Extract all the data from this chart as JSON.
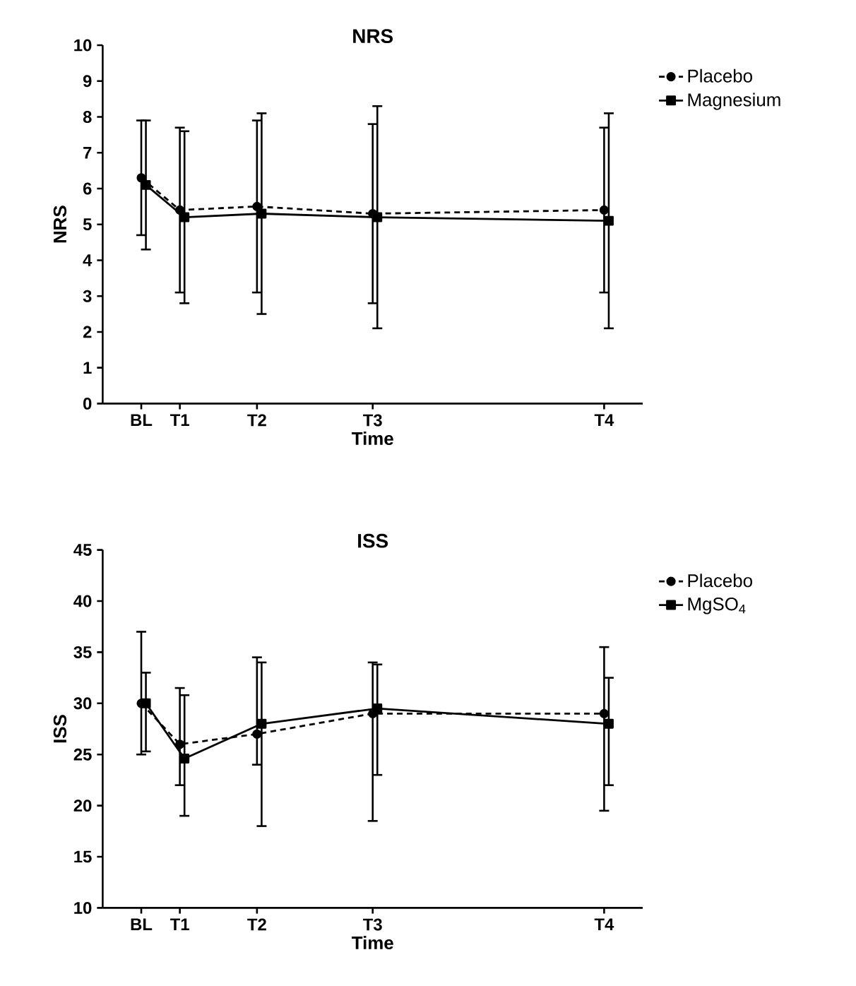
{
  "chart_data": [
    {
      "type": "line",
      "title": "NRS",
      "xlabel": "Time",
      "ylabel": "NRS",
      "categories": [
        "BL",
        "T1",
        null,
        "T2",
        null,
        null,
        "T3",
        null,
        null,
        null,
        null,
        null,
        "T4"
      ],
      "ylim": [
        0,
        10
      ],
      "yticks": [
        0,
        1,
        2,
        3,
        4,
        5,
        6,
        7,
        8,
        9,
        10
      ],
      "legend": "top right",
      "grid": false,
      "series": [
        {
          "name": "Placebo",
          "color": "#000000",
          "line_style": "dashed",
          "marker": "circle",
          "values": [
            6.3,
            5.4,
            null,
            5.5,
            null,
            null,
            5.3,
            null,
            null,
            null,
            null,
            null,
            5.4
          ],
          "errors": [
            [
              4.7,
              7.9
            ],
            [
              3.1,
              7.7
            ],
            null,
            [
              3.1,
              7.9
            ],
            null,
            null,
            [
              2.8,
              7.8
            ],
            null,
            null,
            null,
            null,
            null,
            [
              3.1,
              7.7
            ]
          ]
        },
        {
          "name": "Magnesium",
          "color": "#000000",
          "line_style": "solid",
          "marker": "square",
          "values": [
            6.1,
            5.2,
            null,
            5.3,
            null,
            null,
            5.2,
            null,
            null,
            null,
            null,
            null,
            5.1
          ],
          "errors": [
            [
              4.3,
              7.9
            ],
            [
              2.8,
              7.6
            ],
            null,
            [
              2.5,
              8.1
            ],
            null,
            null,
            [
              2.1,
              8.3
            ],
            null,
            null,
            null,
            null,
            null,
            [
              2.1,
              8.1
            ]
          ]
        }
      ]
    },
    {
      "type": "line",
      "title": "ISS",
      "xlabel": "Time",
      "ylabel": "ISS",
      "categories": [
        "BL",
        "T1",
        null,
        "T2",
        null,
        null,
        "T3",
        null,
        null,
        null,
        null,
        null,
        "T4"
      ],
      "ylim": [
        10,
        45
      ],
      "yticks": [
        10,
        15,
        20,
        25,
        30,
        35,
        40,
        45
      ],
      "legend": "top right",
      "grid": false,
      "series": [
        {
          "name": "Placebo",
          "color": "#000000",
          "line_style": "dashed",
          "marker": "circle",
          "values": [
            30,
            26,
            null,
            27,
            null,
            null,
            29,
            null,
            null,
            null,
            null,
            null,
            29
          ],
          "errors": [
            [
              25,
              37
            ],
            [
              22,
              31.5
            ],
            null,
            [
              24,
              34.5
            ],
            null,
            null,
            [
              18.5,
              34
            ],
            null,
            null,
            null,
            null,
            null,
            [
              19.5,
              35.5
            ]
          ]
        },
        {
          "name": "MgSO$_{4}$",
          "color": "#000000",
          "line_style": "solid",
          "marker": "square",
          "values": [
            30,
            24.6,
            null,
            28,
            null,
            null,
            29.5,
            null,
            null,
            null,
            null,
            null,
            28
          ],
          "errors": [
            [
              25.3,
              33
            ],
            [
              19,
              30.8
            ],
            null,
            [
              18,
              34
            ],
            null,
            null,
            [
              23,
              33.8
            ],
            null,
            null,
            null,
            null,
            null,
            [
              22,
              32.5
            ]
          ]
        }
      ]
    }
  ]
}
